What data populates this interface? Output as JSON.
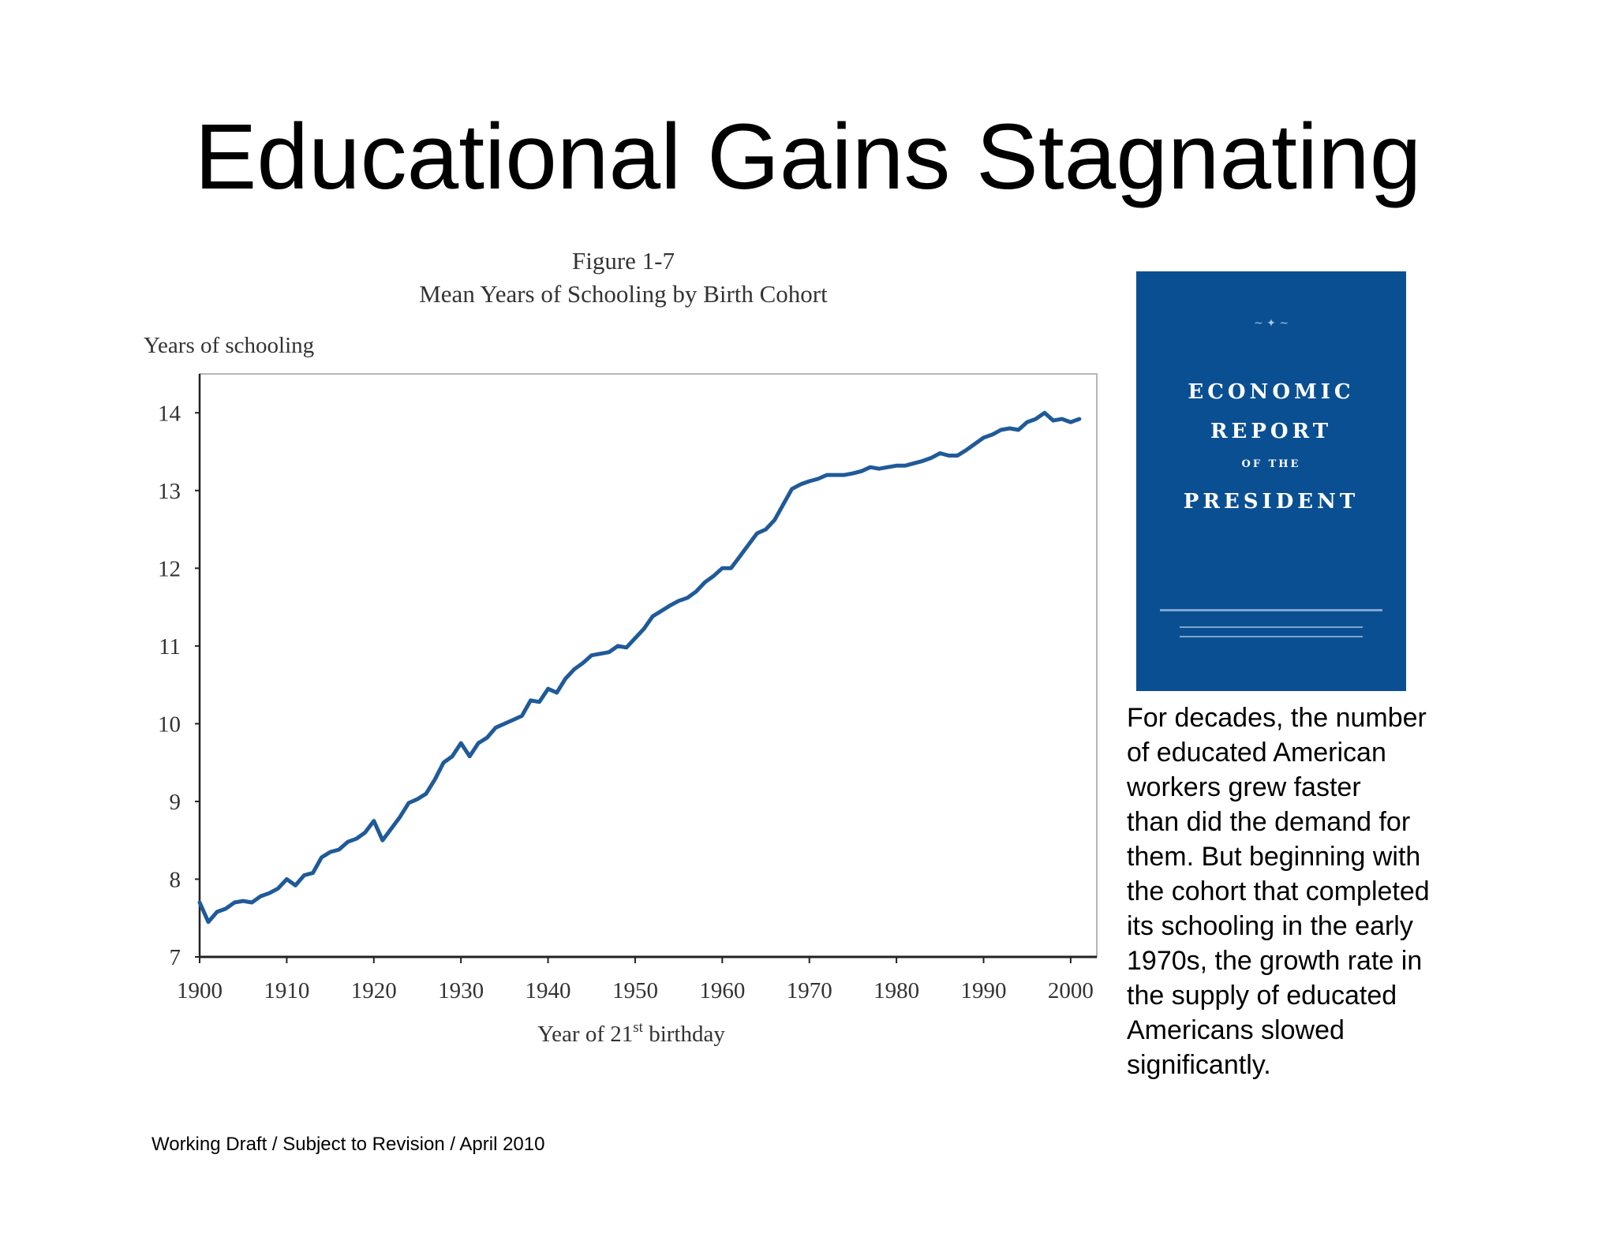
{
  "slide": {
    "title": "Educational Gains Stagnating",
    "footer": "Working Draft / Subject to Revision / April 2010",
    "description_lines": [
      "For decades, the number",
      "of educated American",
      "workers grew faster",
      "than did the demand for",
      "them. But beginning with",
      "the cohort that completed",
      "its schooling in the early",
      "1970s, the growth rate in",
      "the supply of educated",
      "Americans slowed",
      "significantly."
    ]
  },
  "report_cover": {
    "line1": "ECONOMIC",
    "line2": "REPORT",
    "line3": "OF THE",
    "line4": "PRESIDENT",
    "bg_color": "#0a4f92"
  },
  "chart_data": {
    "type": "line",
    "figure_label": "Figure 1-7",
    "title": "Mean Years of Schooling by Birth Cohort",
    "ylabel": "Years of schooling",
    "xlabel_prefix": "Year of 21",
    "xlabel_superscript": "st",
    "xlabel_suffix": " birthday",
    "xlim": [
      1900,
      2003
    ],
    "ylim": [
      7,
      14.5
    ],
    "xticks": [
      1900,
      1910,
      1920,
      1930,
      1940,
      1950,
      1960,
      1970,
      1980,
      1990,
      2000
    ],
    "yticks": [
      7,
      8,
      9,
      10,
      11,
      12,
      13,
      14
    ],
    "grid": false,
    "line_color": "#1f5a99",
    "series": [
      {
        "x": [
          1900,
          1901,
          1902,
          1903,
          1904,
          1905,
          1906,
          1907,
          1908,
          1909,
          1910,
          1911,
          1912,
          1913,
          1914,
          1915,
          1916,
          1917,
          1918,
          1919,
          1920,
          1921,
          1922,
          1923,
          1924,
          1925,
          1926,
          1927,
          1928,
          1929,
          1930,
          1931,
          1932,
          1933,
          1934,
          1935,
          1936,
          1937,
          1938,
          1939,
          1940,
          1941,
          1942,
          1943,
          1944,
          1945,
          1946,
          1947,
          1948,
          1949,
          1950,
          1951,
          1952,
          1953,
          1954,
          1955,
          1956,
          1957,
          1958,
          1959,
          1960,
          1961,
          1962,
          1963,
          1964,
          1965,
          1966,
          1967,
          1968,
          1969,
          1970,
          1971,
          1972,
          1973,
          1974,
          1975,
          1976,
          1977,
          1978,
          1979,
          1980,
          1981,
          1982,
          1983,
          1984,
          1985,
          1986,
          1987,
          1988,
          1989,
          1990,
          1991,
          1992,
          1993,
          1994,
          1995,
          1996,
          1997,
          1998,
          1999,
          2000,
          2001
        ],
        "values": [
          7.7,
          7.45,
          7.58,
          7.62,
          7.7,
          7.72,
          7.7,
          7.78,
          7.82,
          7.88,
          8.0,
          7.92,
          8.05,
          8.08,
          8.28,
          8.35,
          8.38,
          8.48,
          8.52,
          8.6,
          8.75,
          8.5,
          8.65,
          8.8,
          8.98,
          9.03,
          9.1,
          9.28,
          9.5,
          9.58,
          9.75,
          9.58,
          9.75,
          9.82,
          9.95,
          10.0,
          10.05,
          10.1,
          10.3,
          10.28,
          10.45,
          10.4,
          10.58,
          10.7,
          10.78,
          10.88,
          10.9,
          10.92,
          11.0,
          10.98,
          11.1,
          11.22,
          11.38,
          11.45,
          11.52,
          11.58,
          11.62,
          11.7,
          11.82,
          11.9,
          12.0,
          12.0,
          12.15,
          12.3,
          12.45,
          12.5,
          12.62,
          12.82,
          13.02,
          13.08,
          13.12,
          13.15,
          13.2,
          13.2,
          13.2,
          13.22,
          13.25,
          13.3,
          13.28,
          13.3,
          13.32,
          13.32,
          13.35,
          13.38,
          13.42,
          13.48,
          13.45,
          13.45,
          13.52,
          13.6,
          13.68,
          13.72,
          13.78,
          13.8,
          13.78,
          13.88,
          13.92,
          14.0,
          13.9,
          13.92,
          13.88,
          13.92
        ]
      }
    ]
  }
}
